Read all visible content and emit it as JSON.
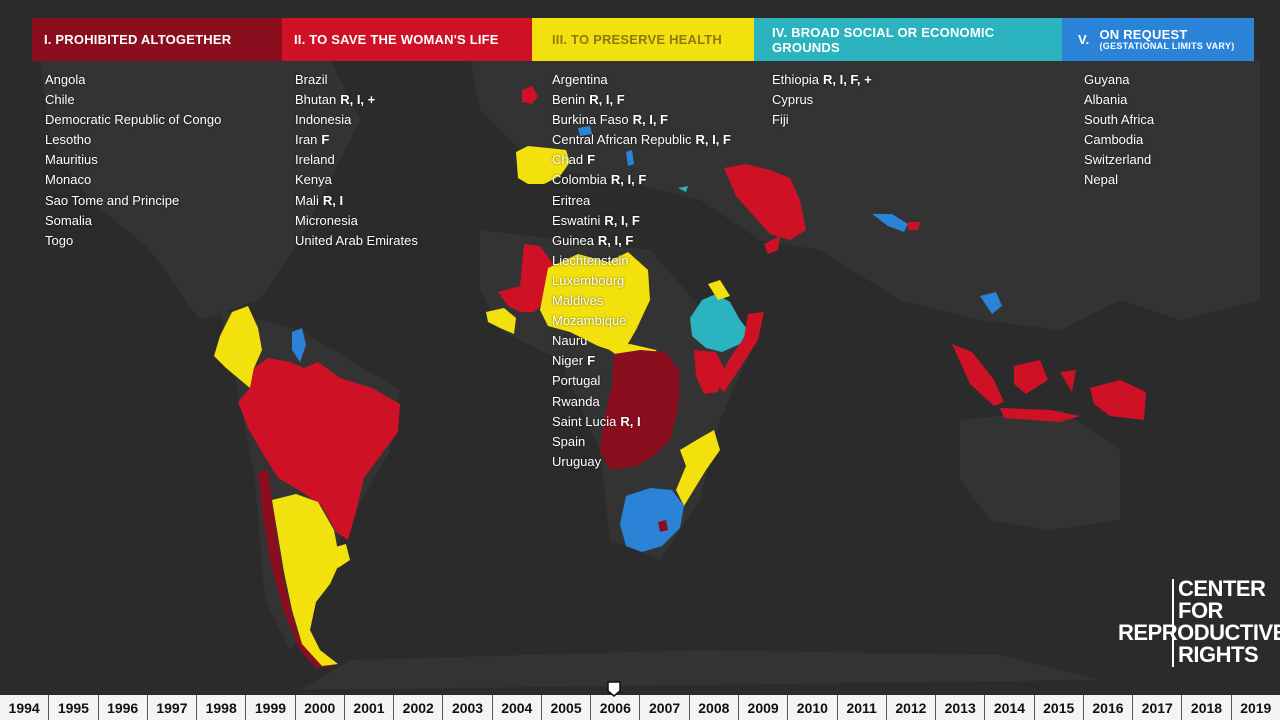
{
  "colors": {
    "background": "#2b2b2b",
    "land": "#333333",
    "prohibited": "#8b0e1f",
    "life": "#cf1126",
    "health": "#f2e10d",
    "social": "#2bb3c0",
    "request": "#2a83d6"
  },
  "categories": [
    {
      "label": "I. PROHIBITED ALTOGETHER",
      "countries": [
        {
          "name": "Angola"
        },
        {
          "name": "Chile"
        },
        {
          "name": "Democratic Republic of Congo"
        },
        {
          "name": "Lesotho"
        },
        {
          "name": "Mauritius"
        },
        {
          "name": "Monaco"
        },
        {
          "name": "Sao Tome and Principe"
        },
        {
          "name": "Somalia"
        },
        {
          "name": "Togo"
        }
      ]
    },
    {
      "label": "II. TO SAVE THE WOMAN'S LIFE",
      "countries": [
        {
          "name": "Brazil"
        },
        {
          "name": "Bhutan",
          "note": "R, I, +"
        },
        {
          "name": "Indonesia"
        },
        {
          "name": "Iran",
          "note": "F"
        },
        {
          "name": "Ireland"
        },
        {
          "name": "Kenya"
        },
        {
          "name": "Mali",
          "note": "R, I"
        },
        {
          "name": "Micronesia"
        },
        {
          "name": "United Arab Emirates"
        }
      ]
    },
    {
      "label": "III. TO PRESERVE HEALTH",
      "countries": [
        {
          "name": "Argentina"
        },
        {
          "name": "Benin",
          "note": "R, I, F"
        },
        {
          "name": "Burkina Faso",
          "note": "R, I, F"
        },
        {
          "name": "Central African Republic",
          "note": "R, I, F"
        },
        {
          "name": "Chad",
          "note": "F"
        },
        {
          "name": "Colombia",
          "note": "R, I, F"
        },
        {
          "name": "Eritrea"
        },
        {
          "name": "Eswatini",
          "note": "R, I, F"
        },
        {
          "name": "Guinea",
          "note": "R, I, F"
        },
        {
          "name": "Liechtenstein"
        },
        {
          "name": "Luxembourg"
        },
        {
          "name": "Maldives"
        },
        {
          "name": "Mozambique"
        },
        {
          "name": "Nauru"
        },
        {
          "name": "Niger",
          "note": "F"
        },
        {
          "name": "Portugal"
        },
        {
          "name": "Rwanda"
        },
        {
          "name": "Saint Lucia",
          "note": "R, I"
        },
        {
          "name": "Spain"
        },
        {
          "name": "Uruguay"
        }
      ]
    },
    {
      "label": "IV. BROAD SOCIAL OR ECONOMIC GROUNDS",
      "countries": [
        {
          "name": "Ethiopia",
          "note": "R, I, F, +"
        },
        {
          "name": "Cyprus"
        },
        {
          "name": "Fiji"
        }
      ]
    },
    {
      "label_num": "V.",
      "label": "ON REQUEST",
      "sublabel": "(GESTATIONAL LIMITS VARY)",
      "countries": [
        {
          "name": "Guyana"
        },
        {
          "name": "Albania"
        },
        {
          "name": "South Africa"
        },
        {
          "name": "Cambodia"
        },
        {
          "name": "Switzerland"
        },
        {
          "name": "Nepal"
        }
      ]
    }
  ],
  "logo": {
    "line1": "CENTER",
    "line2": "FOR",
    "line3": "REPRODUCTIVE",
    "line4": "RIGHTS"
  },
  "timeline": {
    "years": [
      "1994",
      "1995",
      "1996",
      "1997",
      "1998",
      "1999",
      "2000",
      "2001",
      "2002",
      "2003",
      "2004",
      "2005",
      "2006",
      "2007",
      "2008",
      "2009",
      "2010",
      "2011",
      "2012",
      "2013",
      "2014",
      "2015",
      "2016",
      "2017",
      "2018",
      "2019"
    ],
    "selected": "2006"
  }
}
